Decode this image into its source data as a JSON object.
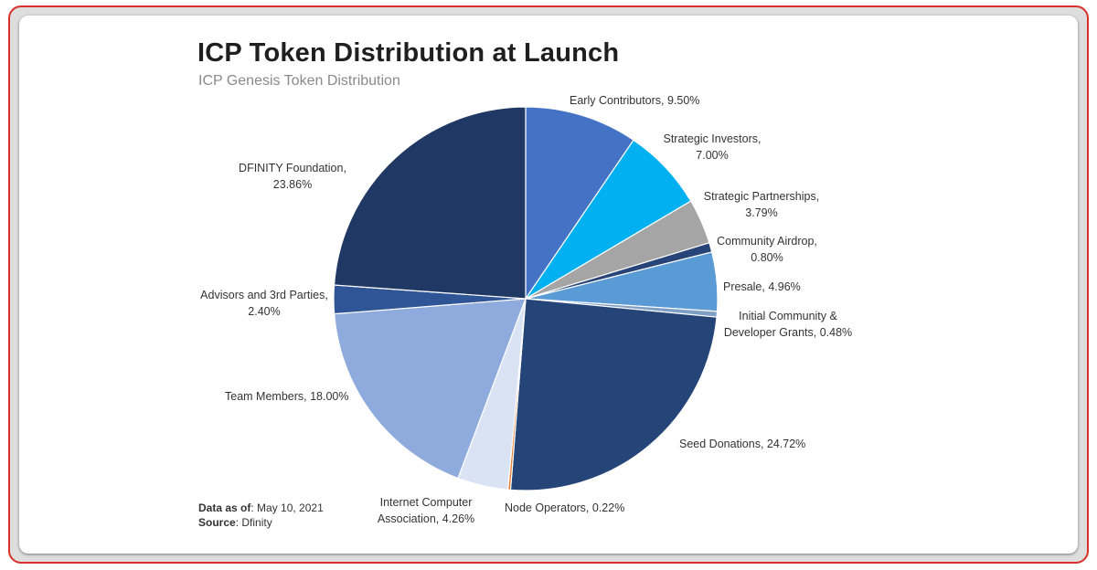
{
  "chart_data": {
    "type": "pie",
    "title": "ICP Token Distribution at Launch",
    "subtitle": "ICP Genesis Token Distribution",
    "slices": [
      {
        "label": "Early Contributors",
        "value": 9.5,
        "display": "9.50%",
        "color": "#4472c4"
      },
      {
        "label": "Strategic Investors",
        "value": 7.0,
        "display": "7.00%",
        "color": "#00b0f0"
      },
      {
        "label": "Strategic Partnerships",
        "value": 3.79,
        "display": "3.79%",
        "color": "#a5a5a5"
      },
      {
        "label": "Community Airdrop",
        "value": 0.8,
        "display": "0.80%",
        "color": "#264478"
      },
      {
        "label": "Presale",
        "value": 4.96,
        "display": "4.96%",
        "color": "#5b9bd5"
      },
      {
        "label": "Initial Community & Developer Grants",
        "value": 0.48,
        "display": "0.48%",
        "color": "#7f9fc6"
      },
      {
        "label": "Seed Donations",
        "value": 24.72,
        "display": "24.72%",
        "color": "#254478"
      },
      {
        "label": "Node Operators",
        "value": 0.22,
        "display": "0.22%",
        "color": "#ed7d31"
      },
      {
        "label": "Internet Computer Association",
        "value": 4.26,
        "display": "4.26%",
        "color": "#dae3f3"
      },
      {
        "label": "Team Members",
        "value": 18.0,
        "display": "18.00%",
        "color": "#8faadc"
      },
      {
        "label": "Advisors and 3rd Parties",
        "value": 2.4,
        "display": "2.40%",
        "color": "#2f5597"
      },
      {
        "label": "DFINITY Foundation",
        "value": 23.86,
        "display": "23.86%",
        "color": "#1f3864"
      }
    ]
  },
  "labels": {
    "early_contributors": "Early Contributors, 9.50%",
    "strategic_investors_1": "Strategic Investors,",
    "strategic_investors_2": "7.00%",
    "strategic_partnerships_1": "Strategic Partnerships,",
    "strategic_partnerships_2": "3.79%",
    "community_airdrop_1": "Community Airdrop,",
    "community_airdrop_2": "0.80%",
    "presale": "Presale, 4.96%",
    "grants_1": "Initial Community &",
    "grants_2": "Developer Grants, 0.48%",
    "seed_donations": "Seed Donations, 24.72%",
    "node_operators": "Node Operators, 0.22%",
    "ica_1": "Internet Computer",
    "ica_2": "Association, 4.26%",
    "team_members": "Team Members, 18.00%",
    "advisors_1": "Advisors and 3rd Parties,",
    "advisors_2": "2.40%",
    "dfinity_1": "DFINITY Foundation,",
    "dfinity_2": "23.86%"
  },
  "footer": {
    "data_as_of_label": "Data as of",
    "data_as_of_value": ": May 10, 2021",
    "source_label": "Source",
    "source_value": ": Dfinity"
  }
}
